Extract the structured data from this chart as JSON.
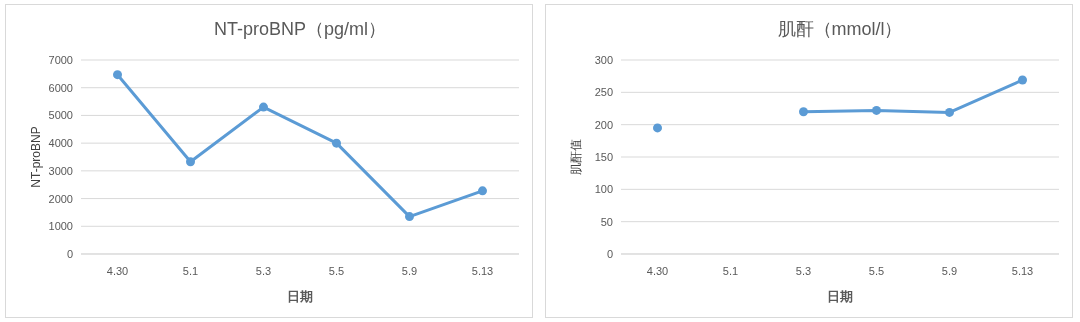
{
  "chart_data": [
    {
      "type": "line",
      "title": "NT-proBNP（pg/ml）",
      "xlabel": "日期",
      "ylabel": "NT-proBNP",
      "categories": [
        "4.30",
        "5.1",
        "5.3",
        "5.5",
        "5.9",
        "5.13"
      ],
      "series": [
        {
          "color": "#5b9bd5",
          "values": [
            6470,
            3330,
            5300,
            4000,
            1350,
            2280
          ]
        }
      ],
      "ylim": [
        0,
        7000
      ],
      "yticks": [
        0,
        1000,
        2000,
        3000,
        4000,
        5000,
        6000,
        7000
      ],
      "grid": "y",
      "marker": "circle",
      "line_style": "solid"
    },
    {
      "type": "line",
      "title": "肌酐（mmol/l）",
      "xlabel": "日期",
      "ylabel": "肌酐值",
      "categories": [
        "4.30",
        "5.1",
        "5.3",
        "5.5",
        "5.9",
        "5.13"
      ],
      "series": [
        {
          "color": "#5b9bd5",
          "values": [
            195,
            null,
            220,
            222,
            219,
            269
          ]
        }
      ],
      "ylim": [
        0,
        300
      ],
      "yticks": [
        0,
        50,
        100,
        150,
        200,
        250,
        300
      ],
      "grid": "y",
      "marker": "circle",
      "line_style": "solid"
    }
  ]
}
